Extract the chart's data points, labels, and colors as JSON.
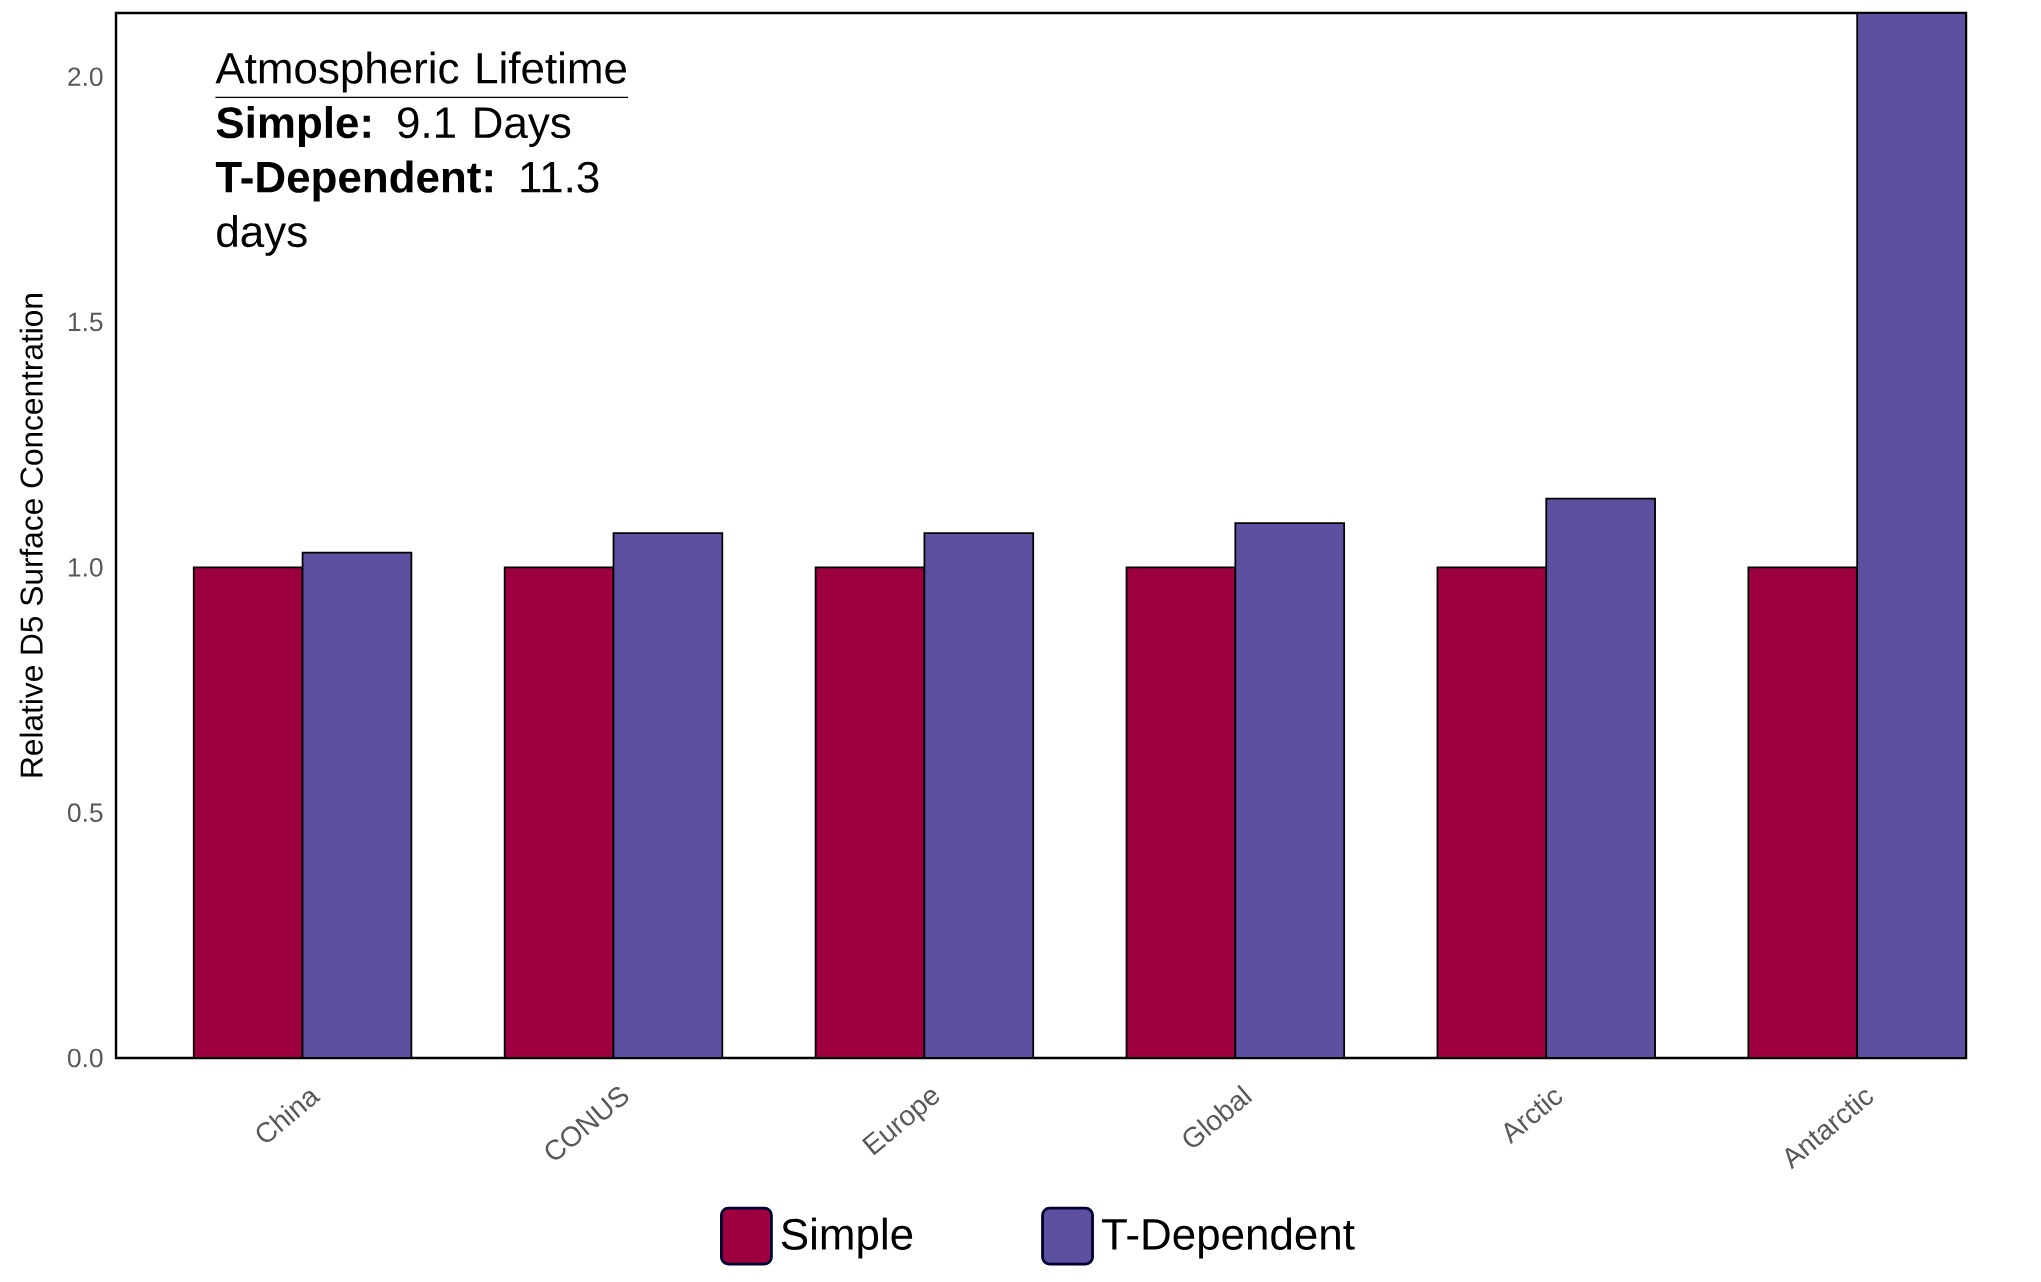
{
  "chart_data": {
    "type": "bar",
    "ylabel": "Relative D5 Surface Concentration",
    "categories": [
      "China",
      "CONUS",
      "Europe",
      "Global",
      "Arctic",
      "Antarctic"
    ],
    "series": [
      {
        "name": "Simple",
        "color": "#9e003f",
        "values": [
          1.0,
          1.0,
          1.0,
          1.0,
          1.0,
          1.0
        ]
      },
      {
        "name": "T-Dependent",
        "color": "#5e50a1",
        "values": [
          1.03,
          1.07,
          1.07,
          1.09,
          1.14,
          2.13
        ]
      }
    ],
    "ylim": [
      0,
      2.13
    ],
    "yticks": [
      {
        "value": 0,
        "label": "0.0"
      },
      {
        "value": 0.5,
        "label": "0.5"
      },
      {
        "value": 1,
        "label": "1.0"
      },
      {
        "value": 1.5,
        "label": "1.5"
      },
      {
        "value": 2,
        "label": "2.0"
      }
    ],
    "legend": "bottom",
    "annotations": [
      "Atmospheric Lifetime",
      "**Simple:** 9.1 Days",
      "**T-Dependent:** 11.3 days"
    ]
  }
}
